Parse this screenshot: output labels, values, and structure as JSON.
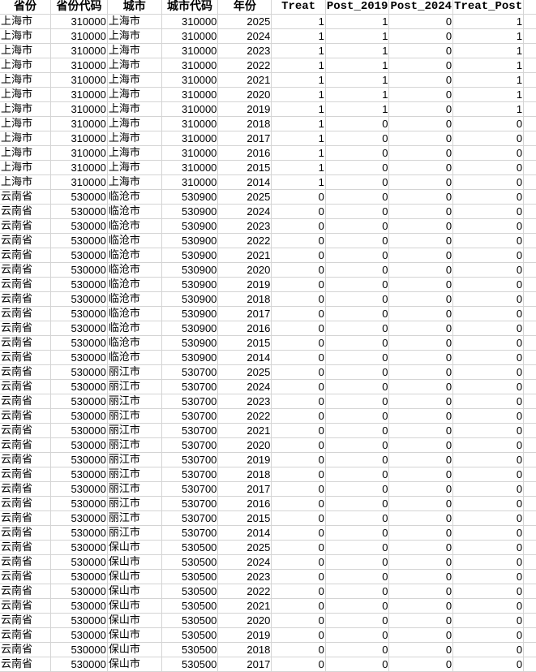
{
  "headers": [
    "省份",
    "省份代码",
    "城市",
    "城市代码",
    "年份",
    "Treat",
    "Post_2019",
    "Post_2024",
    "Treat_Post"
  ],
  "rows": [
    [
      "上海市",
      "310000",
      "上海市",
      "310000",
      "2025",
      "1",
      "1",
      "0",
      "1"
    ],
    [
      "上海市",
      "310000",
      "上海市",
      "310000",
      "2024",
      "1",
      "1",
      "0",
      "1"
    ],
    [
      "上海市",
      "310000",
      "上海市",
      "310000",
      "2023",
      "1",
      "1",
      "0",
      "1"
    ],
    [
      "上海市",
      "310000",
      "上海市",
      "310000",
      "2022",
      "1",
      "1",
      "0",
      "1"
    ],
    [
      "上海市",
      "310000",
      "上海市",
      "310000",
      "2021",
      "1",
      "1",
      "0",
      "1"
    ],
    [
      "上海市",
      "310000",
      "上海市",
      "310000",
      "2020",
      "1",
      "1",
      "0",
      "1"
    ],
    [
      "上海市",
      "310000",
      "上海市",
      "310000",
      "2019",
      "1",
      "1",
      "0",
      "1"
    ],
    [
      "上海市",
      "310000",
      "上海市",
      "310000",
      "2018",
      "1",
      "0",
      "0",
      "0"
    ],
    [
      "上海市",
      "310000",
      "上海市",
      "310000",
      "2017",
      "1",
      "0",
      "0",
      "0"
    ],
    [
      "上海市",
      "310000",
      "上海市",
      "310000",
      "2016",
      "1",
      "0",
      "0",
      "0"
    ],
    [
      "上海市",
      "310000",
      "上海市",
      "310000",
      "2015",
      "1",
      "0",
      "0",
      "0"
    ],
    [
      "上海市",
      "310000",
      "上海市",
      "310000",
      "2014",
      "1",
      "0",
      "0",
      "0"
    ],
    [
      "云南省",
      "530000",
      "临沧市",
      "530900",
      "2025",
      "0",
      "0",
      "0",
      "0"
    ],
    [
      "云南省",
      "530000",
      "临沧市",
      "530900",
      "2024",
      "0",
      "0",
      "0",
      "0"
    ],
    [
      "云南省",
      "530000",
      "临沧市",
      "530900",
      "2023",
      "0",
      "0",
      "0",
      "0"
    ],
    [
      "云南省",
      "530000",
      "临沧市",
      "530900",
      "2022",
      "0",
      "0",
      "0",
      "0"
    ],
    [
      "云南省",
      "530000",
      "临沧市",
      "530900",
      "2021",
      "0",
      "0",
      "0",
      "0"
    ],
    [
      "云南省",
      "530000",
      "临沧市",
      "530900",
      "2020",
      "0",
      "0",
      "0",
      "0"
    ],
    [
      "云南省",
      "530000",
      "临沧市",
      "530900",
      "2019",
      "0",
      "0",
      "0",
      "0"
    ],
    [
      "云南省",
      "530000",
      "临沧市",
      "530900",
      "2018",
      "0",
      "0",
      "0",
      "0"
    ],
    [
      "云南省",
      "530000",
      "临沧市",
      "530900",
      "2017",
      "0",
      "0",
      "0",
      "0"
    ],
    [
      "云南省",
      "530000",
      "临沧市",
      "530900",
      "2016",
      "0",
      "0",
      "0",
      "0"
    ],
    [
      "云南省",
      "530000",
      "临沧市",
      "530900",
      "2015",
      "0",
      "0",
      "0",
      "0"
    ],
    [
      "云南省",
      "530000",
      "临沧市",
      "530900",
      "2014",
      "0",
      "0",
      "0",
      "0"
    ],
    [
      "云南省",
      "530000",
      "丽江市",
      "530700",
      "2025",
      "0",
      "0",
      "0",
      "0"
    ],
    [
      "云南省",
      "530000",
      "丽江市",
      "530700",
      "2024",
      "0",
      "0",
      "0",
      "0"
    ],
    [
      "云南省",
      "530000",
      "丽江市",
      "530700",
      "2023",
      "0",
      "0",
      "0",
      "0"
    ],
    [
      "云南省",
      "530000",
      "丽江市",
      "530700",
      "2022",
      "0",
      "0",
      "0",
      "0"
    ],
    [
      "云南省",
      "530000",
      "丽江市",
      "530700",
      "2021",
      "0",
      "0",
      "0",
      "0"
    ],
    [
      "云南省",
      "530000",
      "丽江市",
      "530700",
      "2020",
      "0",
      "0",
      "0",
      "0"
    ],
    [
      "云南省",
      "530000",
      "丽江市",
      "530700",
      "2019",
      "0",
      "0",
      "0",
      "0"
    ],
    [
      "云南省",
      "530000",
      "丽江市",
      "530700",
      "2018",
      "0",
      "0",
      "0",
      "0"
    ],
    [
      "云南省",
      "530000",
      "丽江市",
      "530700",
      "2017",
      "0",
      "0",
      "0",
      "0"
    ],
    [
      "云南省",
      "530000",
      "丽江市",
      "530700",
      "2016",
      "0",
      "0",
      "0",
      "0"
    ],
    [
      "云南省",
      "530000",
      "丽江市",
      "530700",
      "2015",
      "0",
      "0",
      "0",
      "0"
    ],
    [
      "云南省",
      "530000",
      "丽江市",
      "530700",
      "2014",
      "0",
      "0",
      "0",
      "0"
    ],
    [
      "云南省",
      "530000",
      "保山市",
      "530500",
      "2025",
      "0",
      "0",
      "0",
      "0"
    ],
    [
      "云南省",
      "530000",
      "保山市",
      "530500",
      "2024",
      "0",
      "0",
      "0",
      "0"
    ],
    [
      "云南省",
      "530000",
      "保山市",
      "530500",
      "2023",
      "0",
      "0",
      "0",
      "0"
    ],
    [
      "云南省",
      "530000",
      "保山市",
      "530500",
      "2022",
      "0",
      "0",
      "0",
      "0"
    ],
    [
      "云南省",
      "530000",
      "保山市",
      "530500",
      "2021",
      "0",
      "0",
      "0",
      "0"
    ],
    [
      "云南省",
      "530000",
      "保山市",
      "530500",
      "2020",
      "0",
      "0",
      "0",
      "0"
    ],
    [
      "云南省",
      "530000",
      "保山市",
      "530500",
      "2019",
      "0",
      "0",
      "0",
      "0"
    ],
    [
      "云南省",
      "530000",
      "保山市",
      "530500",
      "2018",
      "0",
      "0",
      "0",
      "0"
    ],
    [
      "云南省",
      "530000",
      "保山市",
      "530500",
      "2017",
      "0",
      "0",
      "0",
      "0"
    ]
  ]
}
